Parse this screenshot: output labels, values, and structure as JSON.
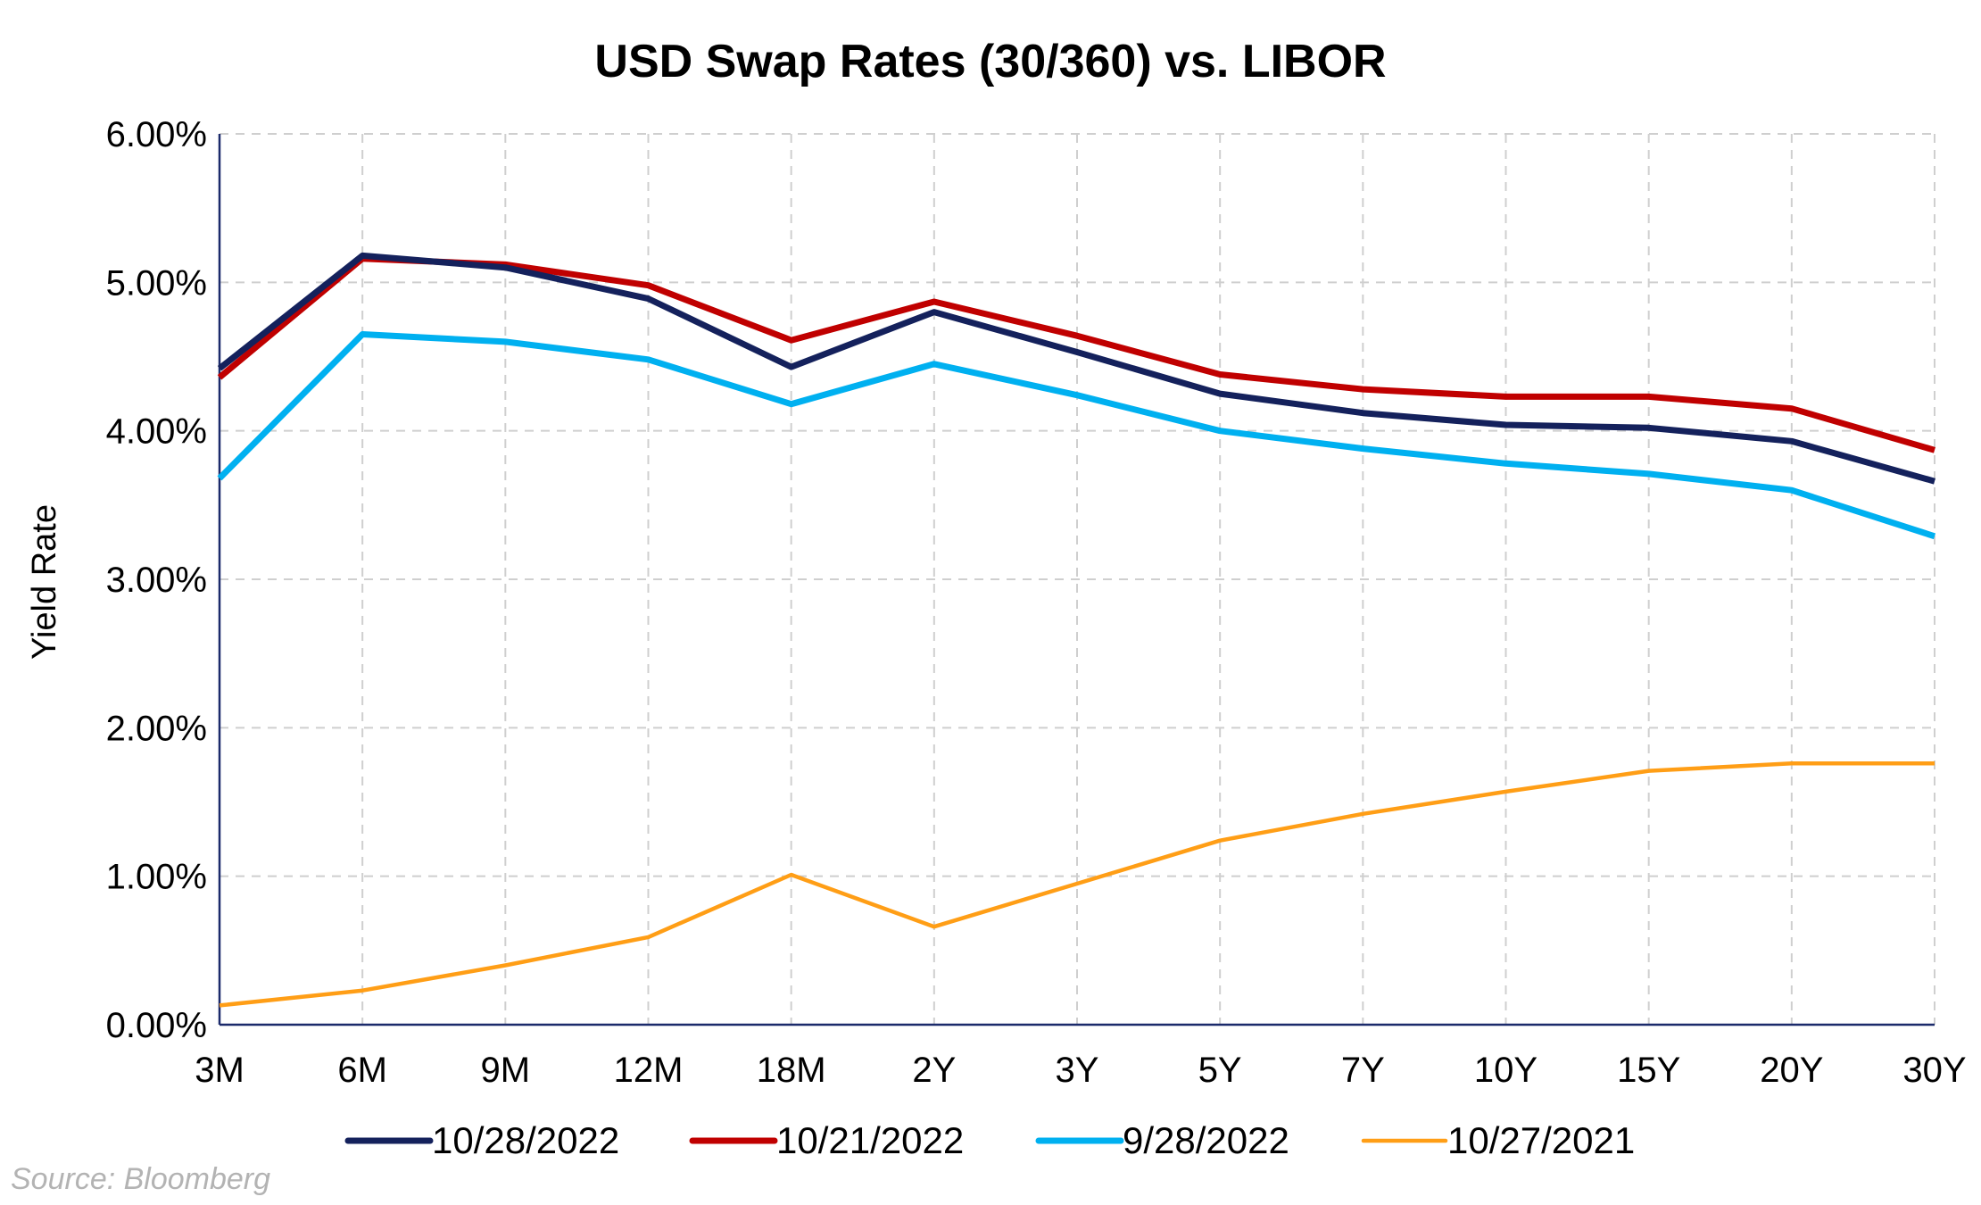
{
  "chart_data": {
    "type": "line",
    "title": "USD Swap Rates (30/360) vs. LIBOR",
    "xlabel": "",
    "ylabel": "Yield Rate",
    "categories": [
      "3M",
      "6M",
      "9M",
      "12M",
      "18M",
      "2Y",
      "3Y",
      "5Y",
      "7Y",
      "10Y",
      "15Y",
      "20Y",
      "30Y"
    ],
    "y_ticks": [
      "0.00%",
      "1.00%",
      "2.00%",
      "3.00%",
      "4.00%",
      "5.00%",
      "6.00%"
    ],
    "ylim": [
      0,
      6
    ],
    "grid": true,
    "legend_position": "bottom",
    "series": [
      {
        "name": "10/28/2022",
        "color": "#14215c",
        "values": [
          4.42,
          5.18,
          5.1,
          4.89,
          4.43,
          4.8,
          4.53,
          4.25,
          4.12,
          4.04,
          4.02,
          3.93,
          3.66
        ]
      },
      {
        "name": "10/21/2022",
        "color": "#c00000",
        "values": [
          4.36,
          5.16,
          5.12,
          4.98,
          4.61,
          4.87,
          4.64,
          4.38,
          4.28,
          4.23,
          4.23,
          4.15,
          3.87
        ]
      },
      {
        "name": "9/28/2022",
        "color": "#00b0f0",
        "values": [
          3.68,
          4.65,
          4.6,
          4.48,
          4.18,
          4.45,
          4.24,
          4.0,
          3.88,
          3.78,
          3.71,
          3.6,
          3.29
        ]
      },
      {
        "name": "10/27/2021",
        "color": "#ff9e16",
        "values": [
          0.13,
          0.23,
          0.4,
          0.59,
          1.01,
          0.66,
          0.95,
          1.24,
          1.42,
          1.57,
          1.71,
          1.76,
          1.76
        ]
      }
    ]
  },
  "source_note": "Source: Bloomberg"
}
